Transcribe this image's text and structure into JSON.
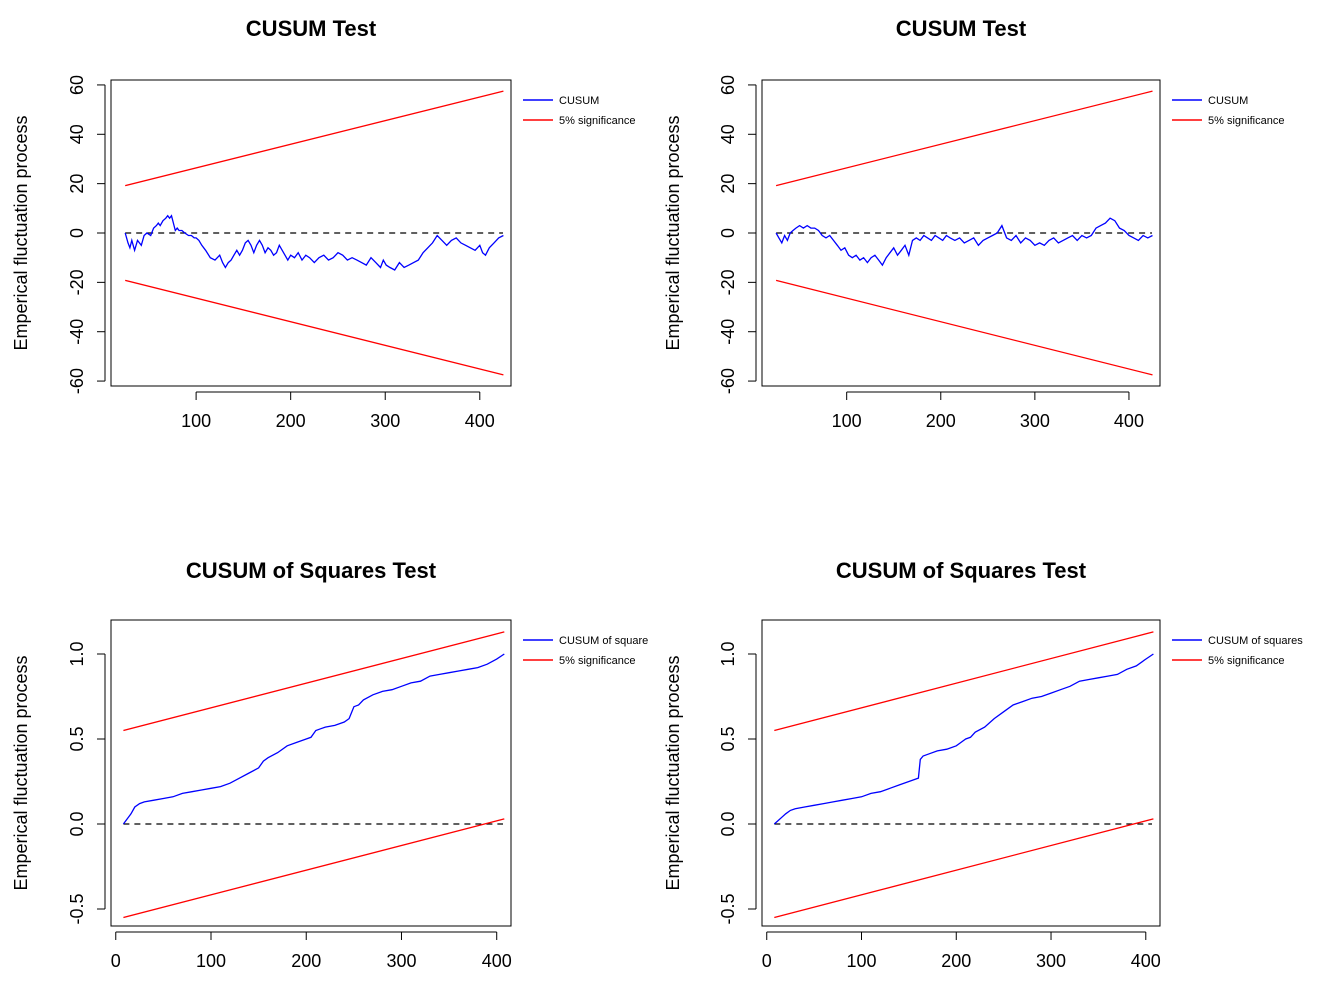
{
  "colors": {
    "cusum": "#0000ff",
    "significance": "#ff0000",
    "axis": "#000000",
    "zero_line": "#000000"
  },
  "chart_data": [
    {
      "type": "line",
      "title": "CUSUM Test",
      "xlabel": "",
      "ylabel": "Emperical fluctuation process",
      "xlim": [
        10,
        433
      ],
      "ylim": [
        -62,
        62
      ],
      "xticks": [
        100,
        200,
        300,
        400
      ],
      "yticks": [
        -60,
        -40,
        -20,
        0,
        20,
        40,
        60
      ],
      "grid": false,
      "legend": "outside-top-right",
      "reference_line": {
        "y": 0,
        "style": "dashed"
      },
      "series": [
        {
          "name": "CUSUM",
          "color": "#0000ff",
          "x": [
            25,
            28,
            30,
            32,
            35,
            38,
            42,
            45,
            48,
            52,
            55,
            58,
            60,
            62,
            65,
            68,
            70,
            72,
            74,
            76,
            78,
            80,
            82,
            85,
            88,
            92,
            95,
            98,
            100,
            103,
            106,
            110,
            115,
            120,
            125,
            128,
            131,
            134,
            137,
            140,
            143,
            146,
            149,
            152,
            155,
            158,
            161,
            164,
            167,
            170,
            173,
            176,
            179,
            182,
            185,
            188,
            191,
            194,
            197,
            200,
            204,
            208,
            212,
            216,
            220,
            225,
            230,
            235,
            240,
            245,
            250,
            255,
            260,
            265,
            270,
            275,
            280,
            285,
            290,
            295,
            298,
            301,
            305,
            310,
            315,
            320,
            325,
            330,
            335,
            340,
            345,
            350,
            355,
            360,
            365,
            370,
            375,
            380,
            385,
            390,
            395,
            400,
            403,
            406,
            410,
            415,
            420,
            425
          ],
          "y": [
            0,
            -4,
            -6,
            -3,
            -7,
            -3,
            -5,
            -1,
            0,
            -1,
            2,
            3,
            4,
            3,
            5,
            6,
            7,
            6,
            7,
            4,
            1,
            2,
            1,
            1,
            0,
            -1,
            -1,
            -2,
            -2,
            -3,
            -5,
            -7,
            -10,
            -11,
            -9,
            -12,
            -14,
            -12,
            -11,
            -9,
            -7,
            -9,
            -7,
            -4,
            -3,
            -5,
            -8,
            -5,
            -3,
            -5,
            -8,
            -6,
            -7,
            -9,
            -8,
            -5,
            -7,
            -9,
            -11,
            -9,
            -10,
            -8,
            -11,
            -9,
            -10,
            -12,
            -10,
            -9,
            -11,
            -10,
            -8,
            -9,
            -11,
            -10,
            -11,
            -12,
            -13,
            -10,
            -12,
            -14,
            -11,
            -13,
            -14,
            -15,
            -12,
            -14,
            -13,
            -12,
            -11,
            -8,
            -6,
            -4,
            -1,
            -3,
            -5,
            -3,
            -2,
            -4,
            -5,
            -6,
            -7,
            -5,
            -8,
            -9,
            -6,
            -4,
            -2,
            -1
          ]
        },
        {
          "name": "5% significance",
          "color": "#ff0000",
          "x": [
            25,
            425
          ],
          "y": [
            19.2,
            57.5
          ]
        },
        {
          "color": "#ff0000",
          "x": [
            25,
            425
          ],
          "y": [
            -19.2,
            -57.5
          ]
        }
      ]
    },
    {
      "type": "line",
      "title": "CUSUM Test",
      "xlabel": "",
      "ylabel": "Emperical fluctuation process",
      "xlim": [
        10,
        433
      ],
      "ylim": [
        -62,
        62
      ],
      "xticks": [
        100,
        200,
        300,
        400
      ],
      "yticks": [
        -60,
        -40,
        -20,
        0,
        20,
        40,
        60
      ],
      "grid": false,
      "legend": "outside-top-right",
      "reference_line": {
        "y": 0,
        "style": "dashed"
      },
      "series": [
        {
          "name": "CUSUM",
          "color": "#0000ff",
          "x": [
            25,
            28,
            31,
            34,
            37,
            40,
            43,
            46,
            50,
            54,
            58,
            62,
            66,
            70,
            74,
            78,
            82,
            86,
            90,
            94,
            98,
            102,
            106,
            110,
            114,
            118,
            122,
            126,
            130,
            134,
            138,
            142,
            146,
            150,
            154,
            158,
            162,
            166,
            170,
            174,
            178,
            182,
            186,
            190,
            194,
            198,
            202,
            206,
            210,
            215,
            220,
            225,
            230,
            235,
            240,
            245,
            250,
            255,
            260,
            265,
            270,
            275,
            280,
            285,
            290,
            295,
            300,
            305,
            310,
            315,
            320,
            325,
            330,
            335,
            340,
            345,
            350,
            355,
            360,
            365,
            370,
            375,
            380,
            385,
            390,
            395,
            400,
            405,
            410,
            415,
            420,
            425
          ],
          "y": [
            0,
            -2,
            -4,
            -1,
            -3,
            0,
            1,
            2,
            3,
            2,
            3,
            2,
            2,
            1,
            -1,
            -2,
            -1,
            -3,
            -5,
            -7,
            -6,
            -9,
            -10,
            -9,
            -11,
            -10,
            -12,
            -10,
            -9,
            -11,
            -13,
            -10,
            -8,
            -6,
            -9,
            -7,
            -5,
            -9,
            -3,
            -2,
            -3,
            -1,
            -2,
            -3,
            -1,
            -2,
            -3,
            -1,
            -2,
            -3,
            -2,
            -4,
            -3,
            -2,
            -5,
            -3,
            -2,
            -1,
            0,
            3,
            -2,
            -3,
            -1,
            -4,
            -2,
            -3,
            -5,
            -4,
            -5,
            -3,
            -2,
            -4,
            -3,
            -2,
            -1,
            -3,
            -1,
            -2,
            -1,
            2,
            3,
            4,
            6,
            5,
            2,
            1,
            -1,
            -2,
            -3,
            -1,
            -2,
            -1
          ]
        },
        {
          "name": "5% significance",
          "color": "#ff0000",
          "x": [
            25,
            425
          ],
          "y": [
            19.2,
            57.5
          ]
        },
        {
          "color": "#ff0000",
          "x": [
            25,
            425
          ],
          "y": [
            -19.2,
            -57.5
          ]
        }
      ]
    },
    {
      "type": "line",
      "title": "CUSUM of Squares Test",
      "xlabel": "",
      "ylabel": "Emperical fluctuation process",
      "xlim": [
        -5,
        415
      ],
      "ylim": [
        -0.6,
        1.2
      ],
      "xticks": [
        0,
        100,
        200,
        300,
        400
      ],
      "yticks": [
        -0.5,
        0.0,
        0.5,
        1.0
      ],
      "ytick_labels": [
        "-0.5",
        "0.0",
        "0.5",
        "1.0"
      ],
      "grid": false,
      "legend": "outside-top-right",
      "reference_line": {
        "y": 0,
        "style": "dashed"
      },
      "series": [
        {
          "name": "CUSUM of square",
          "color": "#0000ff",
          "x": [
            8,
            12,
            16,
            20,
            25,
            30,
            40,
            50,
            60,
            70,
            80,
            90,
            100,
            110,
            120,
            130,
            140,
            150,
            155,
            160,
            170,
            180,
            190,
            200,
            205,
            210,
            215,
            220,
            230,
            240,
            245,
            250,
            255,
            260,
            270,
            280,
            290,
            300,
            310,
            320,
            330,
            340,
            350,
            360,
            370,
            380,
            390,
            400,
            408
          ],
          "y": [
            0.0,
            0.03,
            0.06,
            0.1,
            0.12,
            0.13,
            0.14,
            0.15,
            0.16,
            0.18,
            0.19,
            0.2,
            0.21,
            0.22,
            0.24,
            0.27,
            0.3,
            0.33,
            0.37,
            0.39,
            0.42,
            0.46,
            0.48,
            0.5,
            0.51,
            0.55,
            0.56,
            0.57,
            0.58,
            0.6,
            0.62,
            0.69,
            0.7,
            0.73,
            0.76,
            0.78,
            0.79,
            0.81,
            0.83,
            0.84,
            0.87,
            0.88,
            0.89,
            0.9,
            0.91,
            0.92,
            0.94,
            0.97,
            1.0
          ]
        },
        {
          "name": "5% significance",
          "color": "#ff0000",
          "x": [
            8,
            408
          ],
          "y": [
            0.55,
            1.13
          ]
        },
        {
          "color": "#ff0000",
          "x": [
            8,
            408
          ],
          "y": [
            -0.55,
            0.03
          ]
        }
      ]
    },
    {
      "type": "line",
      "title": "CUSUM of Squares Test",
      "xlabel": "",
      "ylabel": "Emperical fluctuation process",
      "xlim": [
        -5,
        415
      ],
      "ylim": [
        -0.6,
        1.2
      ],
      "xticks": [
        0,
        100,
        200,
        300,
        400
      ],
      "yticks": [
        -0.5,
        0.0,
        0.5,
        1.0
      ],
      "ytick_labels": [
        "-0.5",
        "0.0",
        "0.5",
        "1.0"
      ],
      "grid": false,
      "legend": "outside-top-right",
      "reference_line": {
        "y": 0,
        "style": "dashed"
      },
      "series": [
        {
          "name": "CUSUM of squares",
          "color": "#0000ff",
          "x": [
            8,
            12,
            16,
            20,
            25,
            30,
            40,
            50,
            60,
            70,
            80,
            90,
            100,
            110,
            120,
            130,
            140,
            150,
            160,
            162,
            165,
            170,
            180,
            190,
            200,
            205,
            210,
            215,
            220,
            230,
            240,
            250,
            260,
            270,
            280,
            290,
            300,
            310,
            320,
            330,
            340,
            350,
            360,
            370,
            380,
            390,
            400,
            408
          ],
          "y": [
            0.0,
            0.02,
            0.04,
            0.06,
            0.08,
            0.09,
            0.1,
            0.11,
            0.12,
            0.13,
            0.14,
            0.15,
            0.16,
            0.18,
            0.19,
            0.21,
            0.23,
            0.25,
            0.27,
            0.38,
            0.4,
            0.41,
            0.43,
            0.44,
            0.46,
            0.48,
            0.5,
            0.51,
            0.54,
            0.57,
            0.62,
            0.66,
            0.7,
            0.72,
            0.74,
            0.75,
            0.77,
            0.79,
            0.81,
            0.84,
            0.85,
            0.86,
            0.87,
            0.88,
            0.91,
            0.93,
            0.97,
            1.0
          ]
        },
        {
          "name": "5% significance",
          "color": "#ff0000",
          "x": [
            8,
            408
          ],
          "y": [
            0.55,
            1.13
          ]
        },
        {
          "color": "#ff0000",
          "x": [
            8,
            408
          ],
          "y": [
            -0.55,
            0.03
          ]
        }
      ]
    }
  ]
}
